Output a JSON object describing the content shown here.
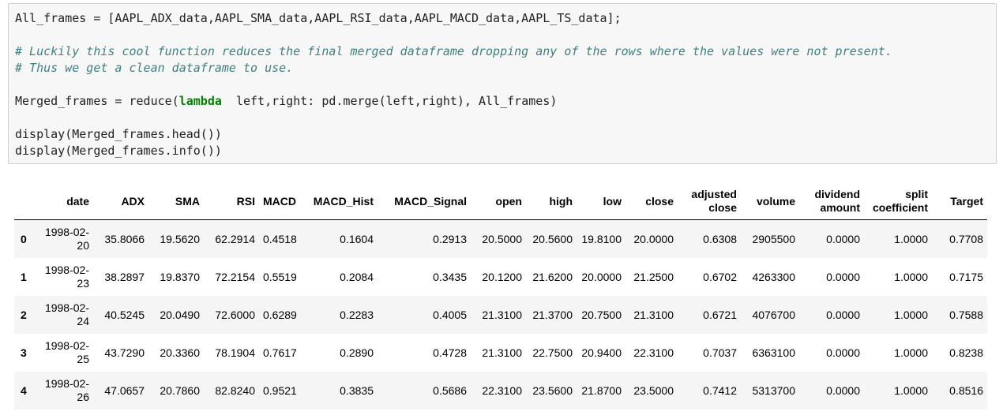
{
  "code": {
    "line1": "All_frames = [AAPL_ADX_data,AAPL_SMA_data,AAPL_RSI_data,AAPL_MACD_data,AAPL_TS_data];",
    "comment1": "# Luckily this cool function reduces the final merged dataframe dropping any of the rows where the values were not present.",
    "comment2": "# Thus we get a clean dataframe to use.",
    "line4_pre": "Merged_frames = reduce(",
    "line4_kw": "lambda",
    "line4_post": "  left,right: pd.merge(left,right), All_frames)",
    "line5": "display(Merged_frames.head())",
    "line6": "display(Merged_frames.info())"
  },
  "table": {
    "columns": [
      "date",
      "ADX",
      "SMA",
      "RSI",
      "MACD",
      "MACD_Hist",
      "MACD_Signal",
      "open",
      "high",
      "low",
      "close",
      "adjusted close",
      "volume",
      "dividend amount",
      "split coefficient",
      "Target"
    ],
    "rows": [
      {
        "index": "0",
        "cells": [
          "1998-02-20",
          "35.8066",
          "19.5620",
          "62.2914",
          "0.4518",
          "0.1604",
          "0.2913",
          "20.5000",
          "20.5600",
          "19.8100",
          "20.0000",
          "0.6308",
          "2905500",
          "0.0000",
          "1.0000",
          "0.7708"
        ]
      },
      {
        "index": "1",
        "cells": [
          "1998-02-23",
          "38.2897",
          "19.8370",
          "72.2154",
          "0.5519",
          "0.2084",
          "0.3435",
          "20.1200",
          "21.6200",
          "20.0000",
          "21.2500",
          "0.6702",
          "4263300",
          "0.0000",
          "1.0000",
          "0.7175"
        ]
      },
      {
        "index": "2",
        "cells": [
          "1998-02-24",
          "40.5245",
          "20.0490",
          "72.6000",
          "0.6289",
          "0.2283",
          "0.4005",
          "21.3100",
          "21.3700",
          "20.7500",
          "21.3100",
          "0.6721",
          "4076700",
          "0.0000",
          "1.0000",
          "0.7588"
        ]
      },
      {
        "index": "3",
        "cells": [
          "1998-02-25",
          "43.7290",
          "20.3360",
          "78.1904",
          "0.7617",
          "0.2890",
          "0.4728",
          "21.3100",
          "22.7500",
          "20.9400",
          "22.3100",
          "0.7037",
          "6363100",
          "0.0000",
          "1.0000",
          "0.8238"
        ]
      },
      {
        "index": "4",
        "cells": [
          "1998-02-26",
          "47.0657",
          "20.7860",
          "82.8240",
          "0.9521",
          "0.3835",
          "0.5686",
          "22.3100",
          "23.5600",
          "21.8700",
          "23.5000",
          "0.7412",
          "5313700",
          "0.0000",
          "1.0000",
          "0.8516"
        ]
      }
    ]
  }
}
